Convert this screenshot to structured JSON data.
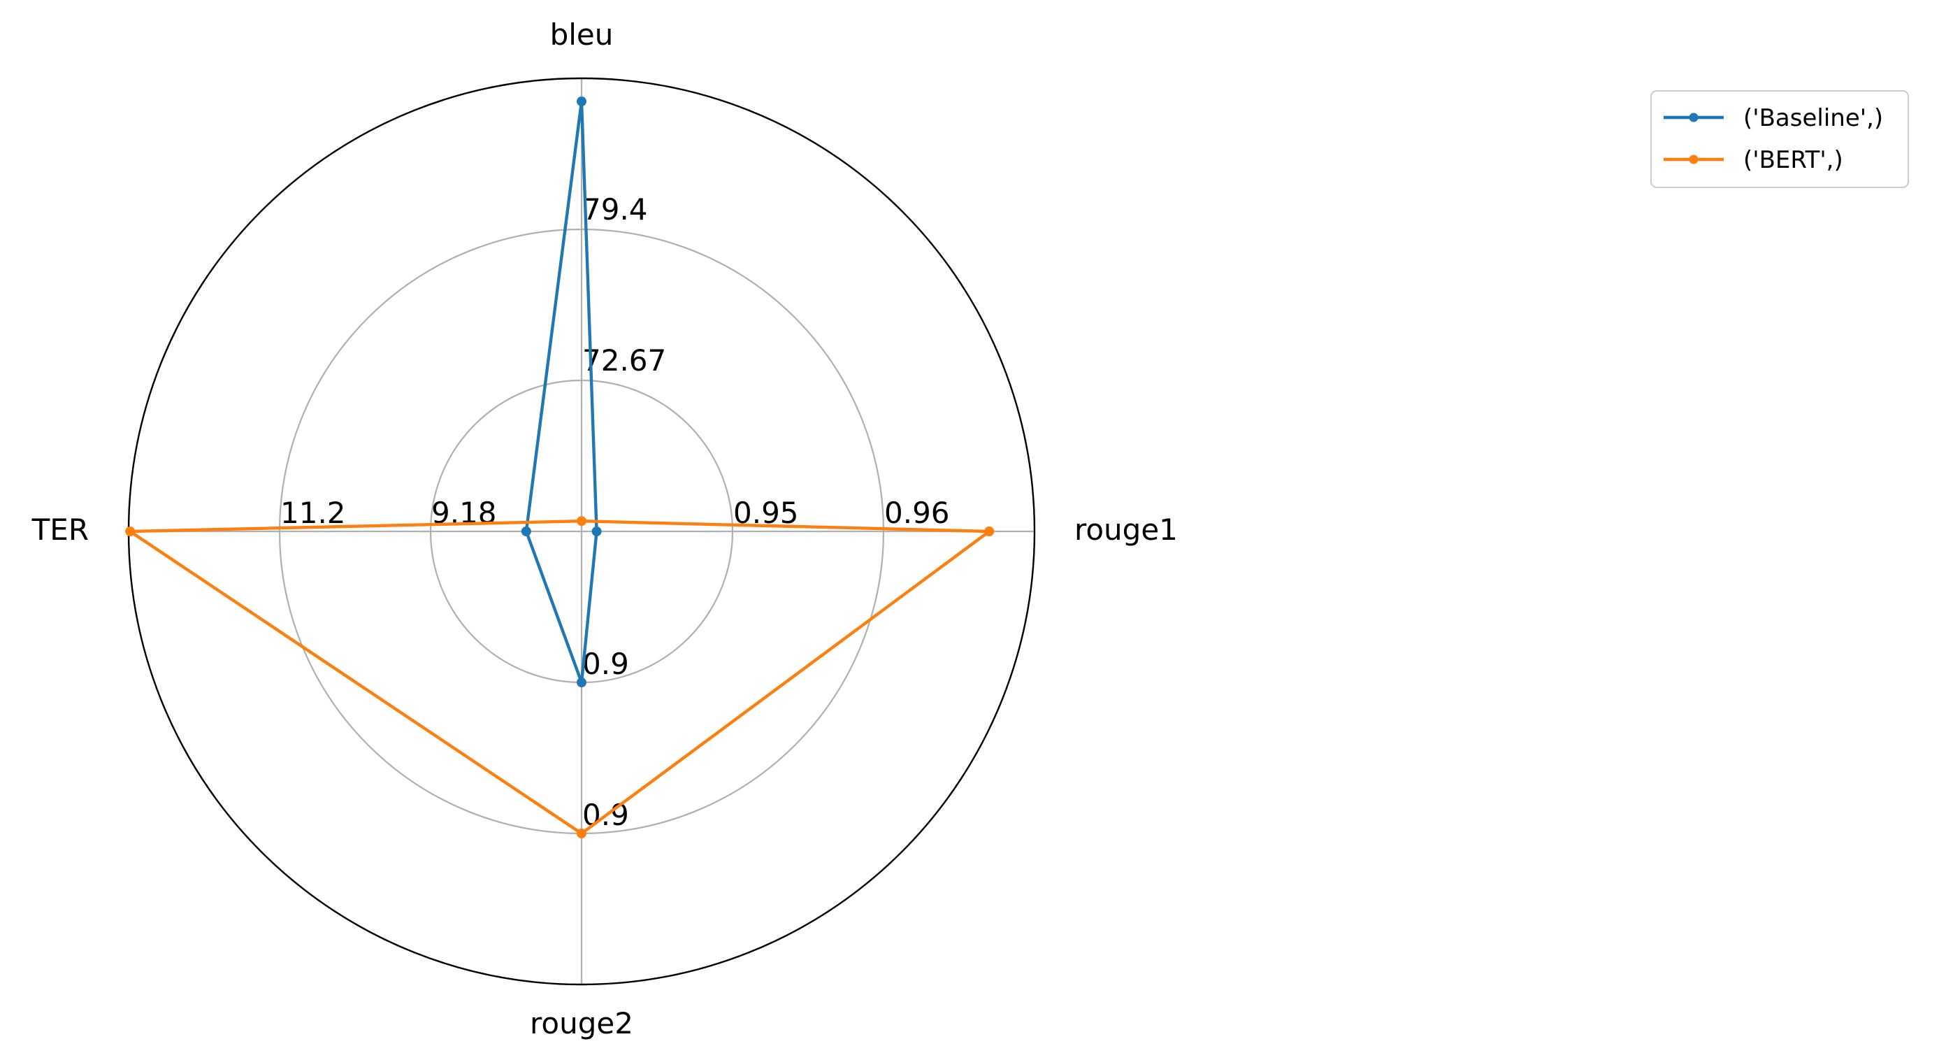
{
  "chart_data": {
    "type": "radar",
    "axes": [
      "bleu",
      "rouge1",
      "rouge2",
      "TER"
    ],
    "tick_labels": {
      "bleu": [
        "72.67",
        "79.4"
      ],
      "rouge1": [
        "0.95",
        "0.96"
      ],
      "rouge2": [
        "0.9",
        "0.9"
      ],
      "TER": [
        "9.18",
        "11.2"
      ]
    },
    "series": [
      {
        "name": "('Baseline',)",
        "color": "#1f77b4",
        "values": [
          85.1,
          0.941,
          0.895,
          7.9
        ]
      },
      {
        "name": "('BERT',)",
        "color": "#ff7f0e",
        "values": [
          66.4,
          0.967,
          0.905,
          13.2
        ]
      }
    ],
    "grid": true,
    "legend_position": "upper-right-outside"
  }
}
